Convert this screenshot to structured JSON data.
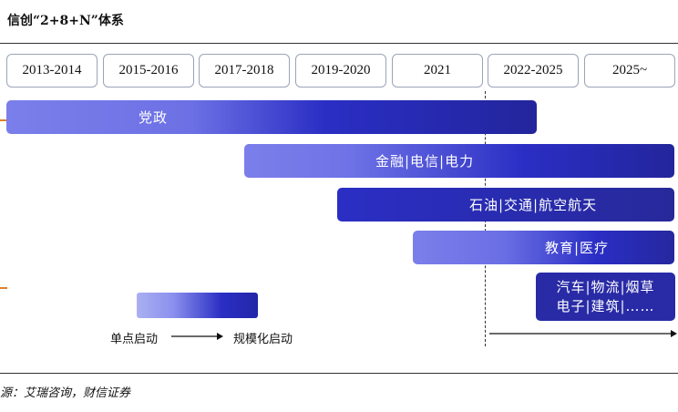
{
  "title": "信创“2+8+N”体系",
  "timeline": {
    "years": [
      "2013-2014",
      "2015-2016",
      "2017-2018",
      "2019-2020",
      "2021",
      "2022-2025",
      "2025~"
    ]
  },
  "bars": {
    "party_gov": "党政",
    "finance": "金融|电信|电力",
    "oil": "石油|交通|航空航天",
    "edu": "教育|医疗",
    "others_line1": "汽车|物流|烟草",
    "others_line2": "电子|建筑|……"
  },
  "legend": {
    "start": "单点启动",
    "scale": "规模化启动"
  },
  "source": "源：艾瑞咨询，财信证券",
  "colors": {
    "light_blue": "#7b7fea",
    "dark_blue": "#27299a",
    "border": "#9aa3b8",
    "accent": "#e0802a"
  }
}
